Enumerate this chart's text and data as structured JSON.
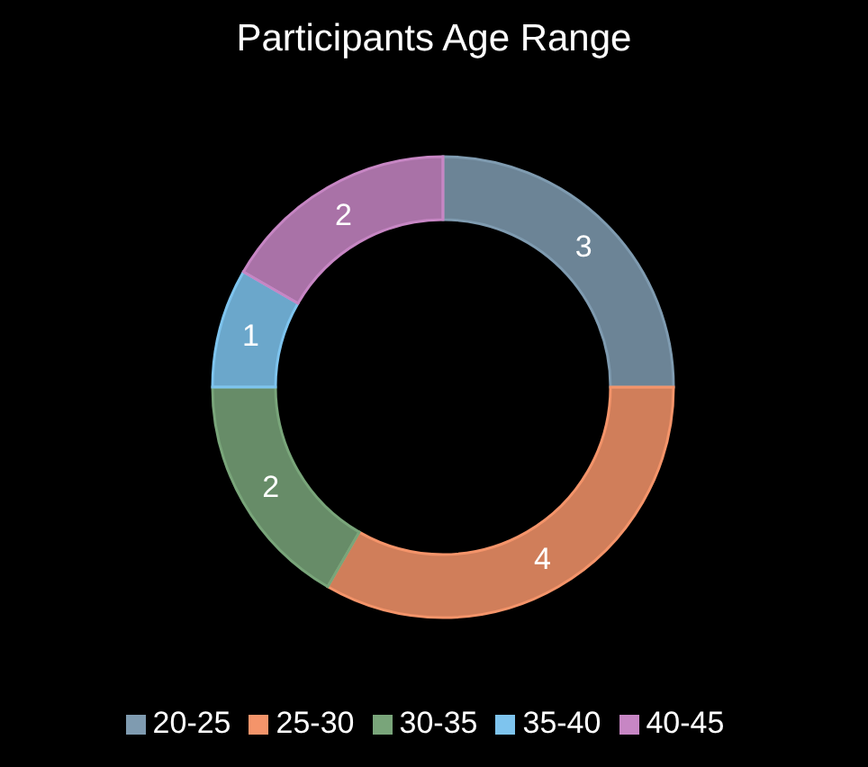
{
  "chart_data": {
    "type": "donut",
    "title": "Participants Age Range",
    "categories": [
      "20-25",
      "25-30",
      "30-35",
      "35-40",
      "40-45"
    ],
    "values": [
      3,
      4,
      2,
      1,
      2
    ],
    "colors": [
      "#7f9bb0",
      "#f4946a",
      "#79a57a",
      "#7ec4ee",
      "#c786c4"
    ],
    "data_labels": true,
    "legend": "bottom"
  }
}
